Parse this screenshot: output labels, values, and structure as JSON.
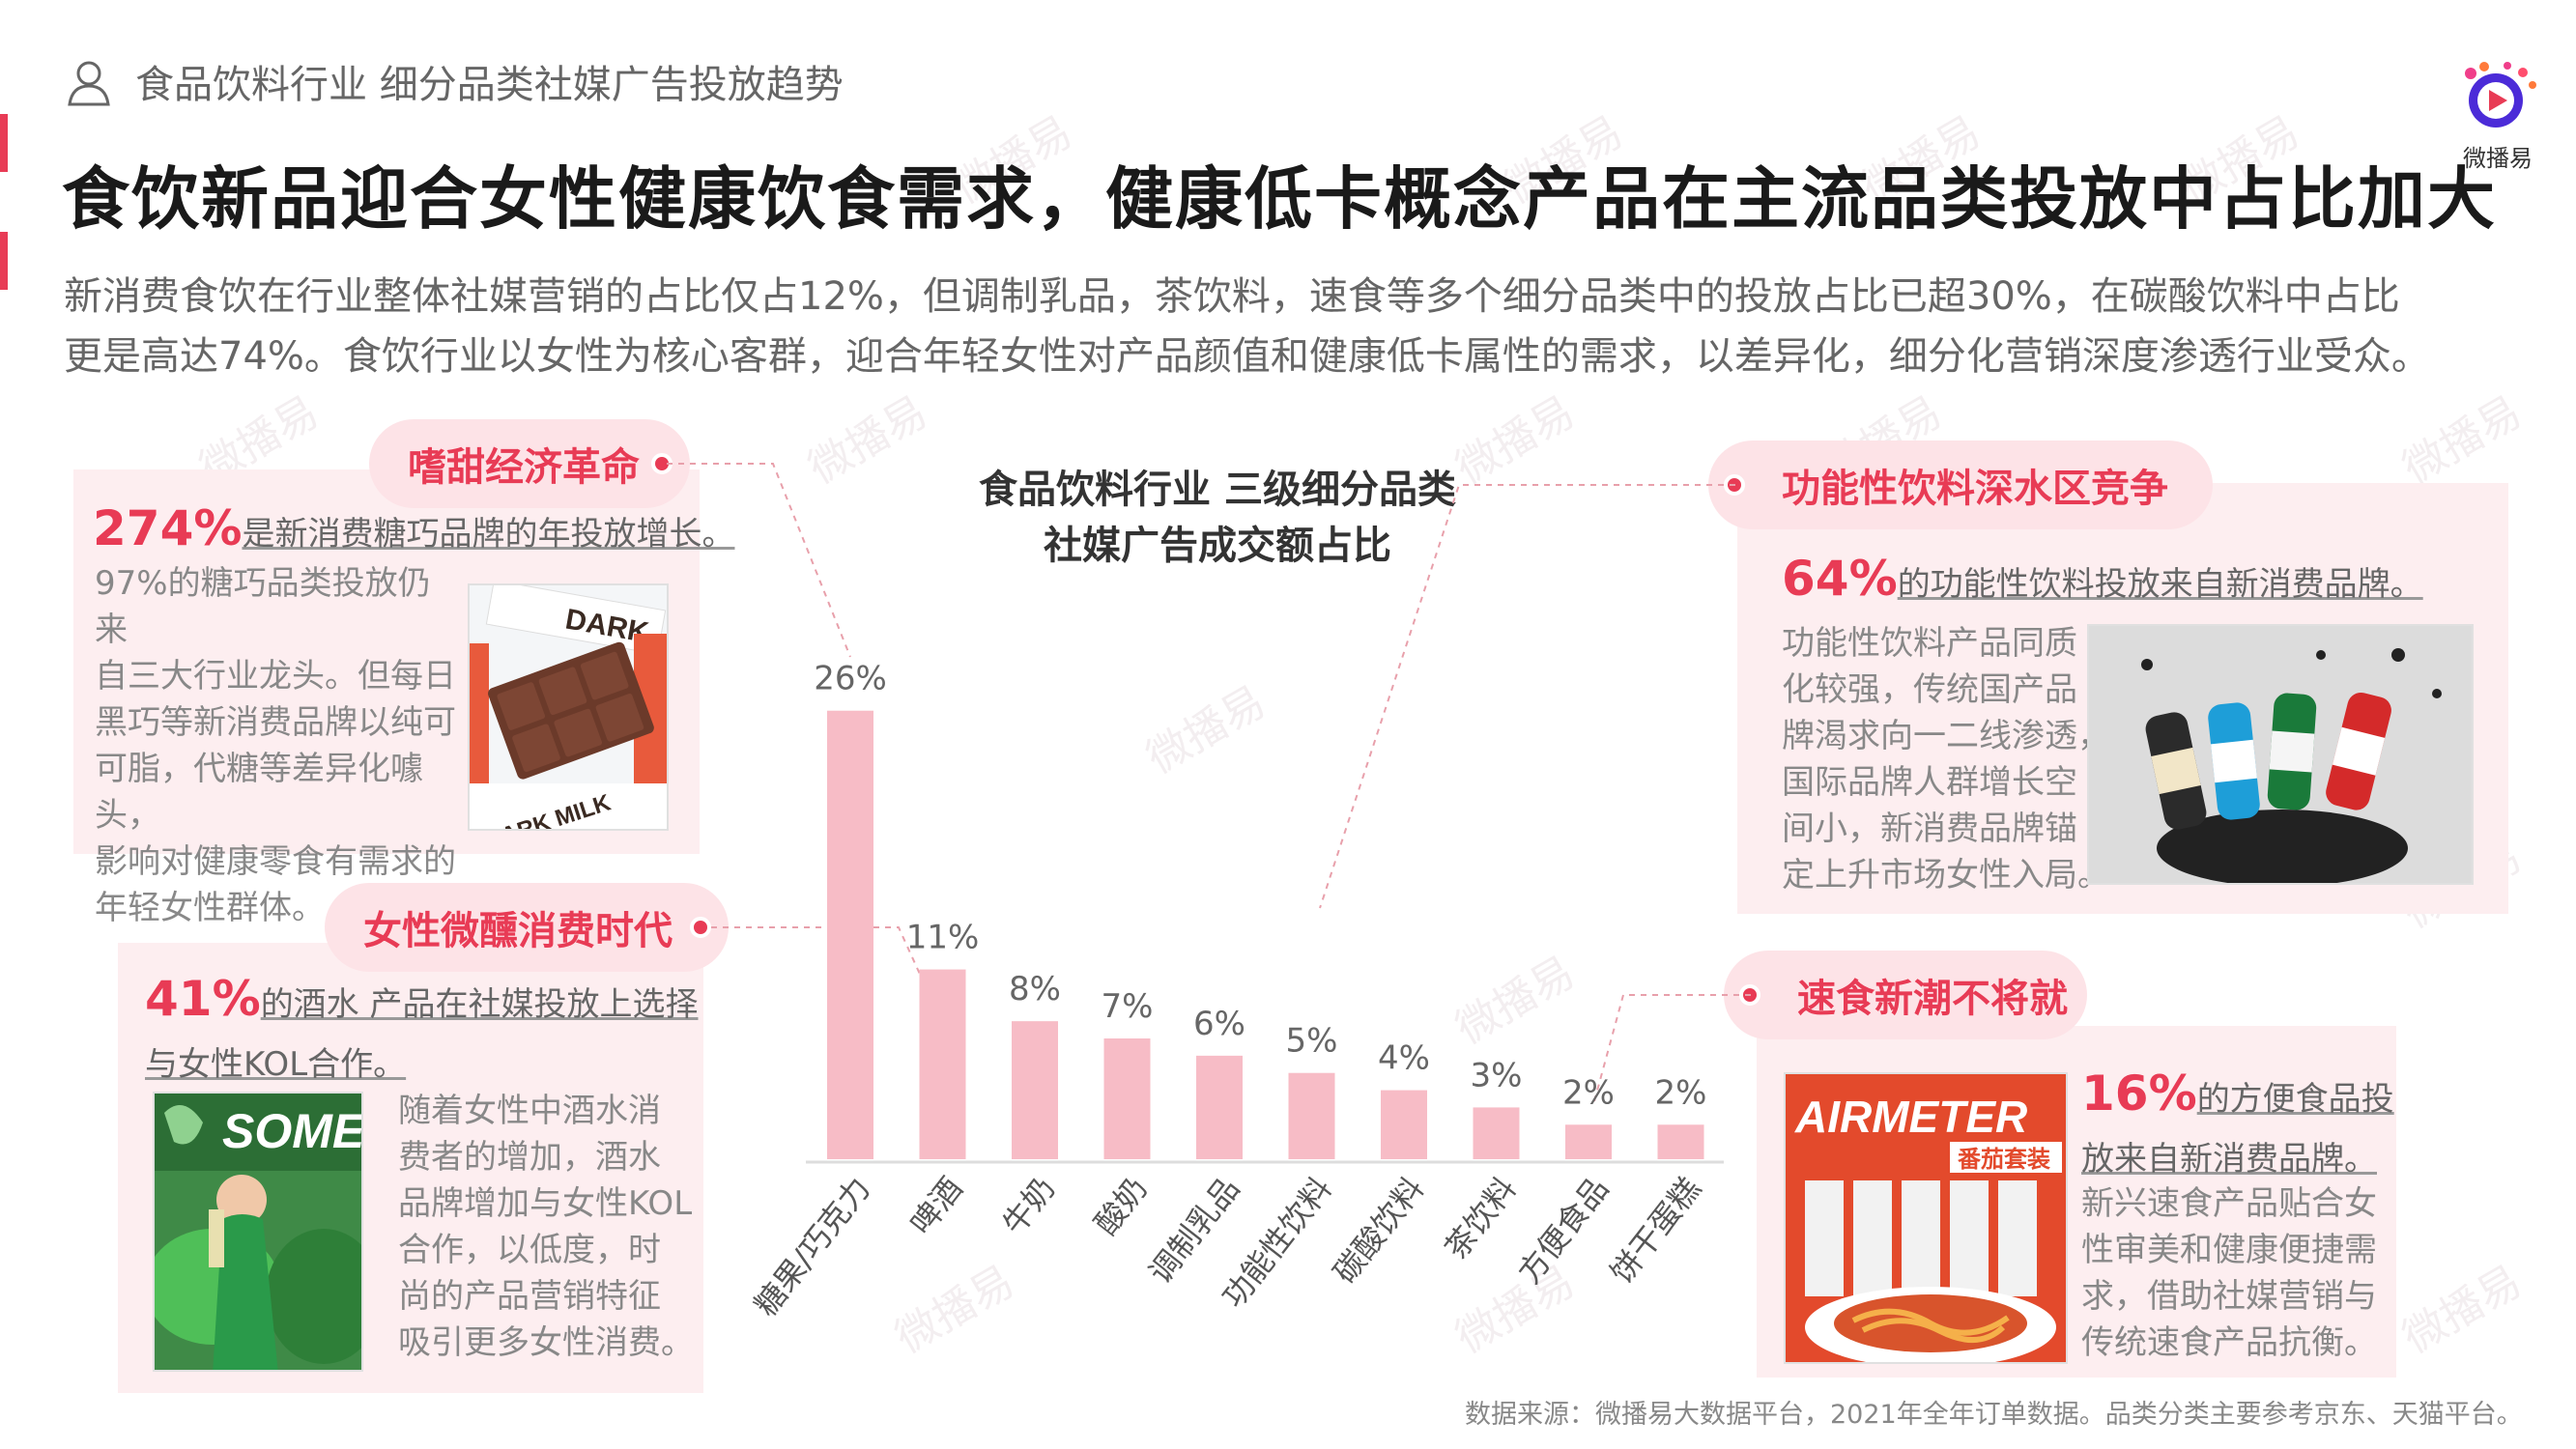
{
  "header": {
    "section_label": "食品饮料行业 细分品类社媒广告投放趋势",
    "logo_text": "微播易",
    "main_title": "食饮新品迎合女性健康饮食需求，健康低卡概念产品在主流品类投放中占比加大",
    "intro_line1": "新消费食饮在行业整体社媒营销的占比仅占12%，但调制乳品，茶饮料，速食等多个细分品类中的投放占比已超30%，在碳酸饮料中占比",
    "intro_line2": "更是高达74%。食饮行业以女性为核心客群，迎合年轻女性对产品颜值和健康低卡属性的需求，以差异化，细分化营销深度渗透行业受众。"
  },
  "panels": {
    "sweet": {
      "tag": "嗜甜经济革命",
      "stat": "274%",
      "stat_text": "是新消费糖巧品牌的年投放增长。",
      "body": [
        "97%的糖巧品类投放仍来",
        "自三大行业龙头。但每日",
        "黑巧等新消费品牌以纯可",
        "可脂，代糖等差异化噱头，",
        "影响对健康零食有需求的",
        "年轻女性群体。"
      ],
      "photo_text_1": "DARK",
      "photo_text_2": "DARK MILK"
    },
    "alcohol": {
      "tag": "女性微醺消费时代",
      "stat": "41%",
      "stat_text_1": "的酒水 产品在社媒投放上选择",
      "stat_text_2": "与女性KOL合作。",
      "body": [
        "随着女性中酒水消",
        "费者的增加，酒水",
        "品牌增加与女性KOL",
        "合作，以低度，时",
        "尚的产品营销特征",
        "吸引更多女性消费。"
      ],
      "photo_text": "SOMEI"
    },
    "functional": {
      "tag": "功能性饮料深水区竞争",
      "stat": "64%",
      "stat_text": "的功能性饮料投放来自新消费品牌。",
      "body": [
        "功能性饮料产品同质",
        "化较强，传统国产品",
        "牌渴求向一二线渗透，",
        "国际品牌人群增长空",
        "间小，新消费品牌锚",
        "定上升市场女性入局。"
      ]
    },
    "instant": {
      "tag": "速食新潮不将就",
      "stat": "16%",
      "stat_text_1": "的方便食品投",
      "stat_text_2": "放来自新消费品牌。",
      "body": [
        "新兴速食产品贴合女",
        "性审美和健康便捷需",
        "求，借助社媒营销与",
        "传统速食产品抗衡。"
      ],
      "photo_brand": "AIRMETER",
      "photo_sub": "番茄套装"
    }
  },
  "chart_data": {
    "type": "bar",
    "title_line1": "食品饮料行业 三级细分品类",
    "title_line2": "社媒广告成交额占比",
    "categories": [
      "糖果/巧克力",
      "啤酒",
      "牛奶",
      "酸奶",
      "调制乳品",
      "功能性饮料",
      "碳酸饮料",
      "茶饮料",
      "方便食品",
      "饼干蛋糕"
    ],
    "values": [
      26,
      11,
      8,
      7,
      6,
      5,
      4,
      3,
      2,
      2
    ],
    "value_labels": [
      "26%",
      "11%",
      "8%",
      "7%",
      "6%",
      "5%",
      "4%",
      "3%",
      "2%",
      "2%"
    ],
    "bar_color": "#f7bcc6",
    "ylim": [
      0,
      28
    ],
    "grid": false,
    "legend": "none"
  },
  "footer": {
    "source": "数据来源：微播易大数据平台，2021年全年订单数据。品类分类主要参考京东、天猫平台。"
  },
  "watermark_text": "微播易",
  "colors": {
    "accent": "#e83b55",
    "panel_bg": "#fdeef0",
    "pill_bg": "#fde3e7",
    "bar": "#f7bcc6"
  }
}
